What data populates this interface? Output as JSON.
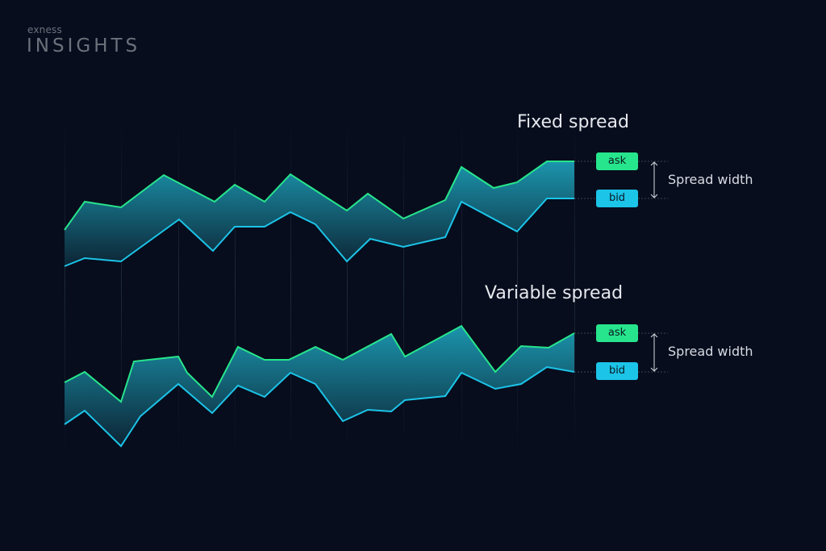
{
  "brand": {
    "small": "exness",
    "big": "INSIGHTS"
  },
  "panels": [
    {
      "title": "Fixed spread",
      "ask_label": "ask",
      "bid_label": "bid",
      "spread_label": "Spread width"
    },
    {
      "title": "Variable spread",
      "ask_label": "ask",
      "bid_label": "bid",
      "spread_label": "Spread width"
    }
  ],
  "colors": {
    "background": "#070d1d",
    "ask": "#27e58c",
    "bid": "#1cc4e8",
    "fill": "#1a8fa6"
  }
}
